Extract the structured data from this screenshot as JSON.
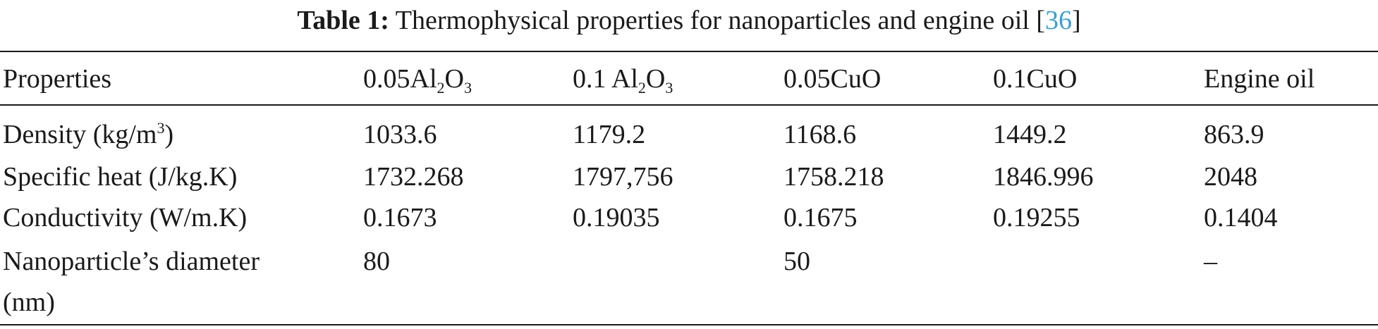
{
  "caption": {
    "label": "Table 1:",
    "text": "Thermophysical properties for nanoparticles and engine oil [",
    "ref": "36",
    "close": "]"
  },
  "headers": {
    "properties": "Properties",
    "col1": {
      "pre": "0.05Al",
      "sub1": "2",
      "mid": "O",
      "sub2": "3"
    },
    "col2": {
      "pre": "0.1 Al",
      "sub1": "2",
      "mid": "O",
      "sub2": "3"
    },
    "col3": "0.05CuO",
    "col4": "0.1CuO",
    "col5": "Engine oil"
  },
  "rows": {
    "density": {
      "label_pre": "Density (kg/m",
      "label_sup": "3",
      "label_post": ")",
      "values": [
        "1033.6",
        "1179.2",
        "1168.6",
        "1449.2",
        "863.9"
      ]
    },
    "specific_heat": {
      "label": "Specific heat (J/kg.K)",
      "values": [
        "1732.268",
        "1797,756",
        "1758.218",
        "1846.996",
        "2048"
      ]
    },
    "conductivity": {
      "label": "Conductivity (W/m.K)",
      "values": [
        "0.1673",
        "0.19035",
        "0.1675",
        "0.19255",
        "0.1404"
      ]
    },
    "diameter": {
      "label_line1": "Nanoparticle’s diameter",
      "label_line2": "(nm)",
      "values": [
        "80",
        "",
        "50",
        "",
        "–"
      ]
    }
  }
}
